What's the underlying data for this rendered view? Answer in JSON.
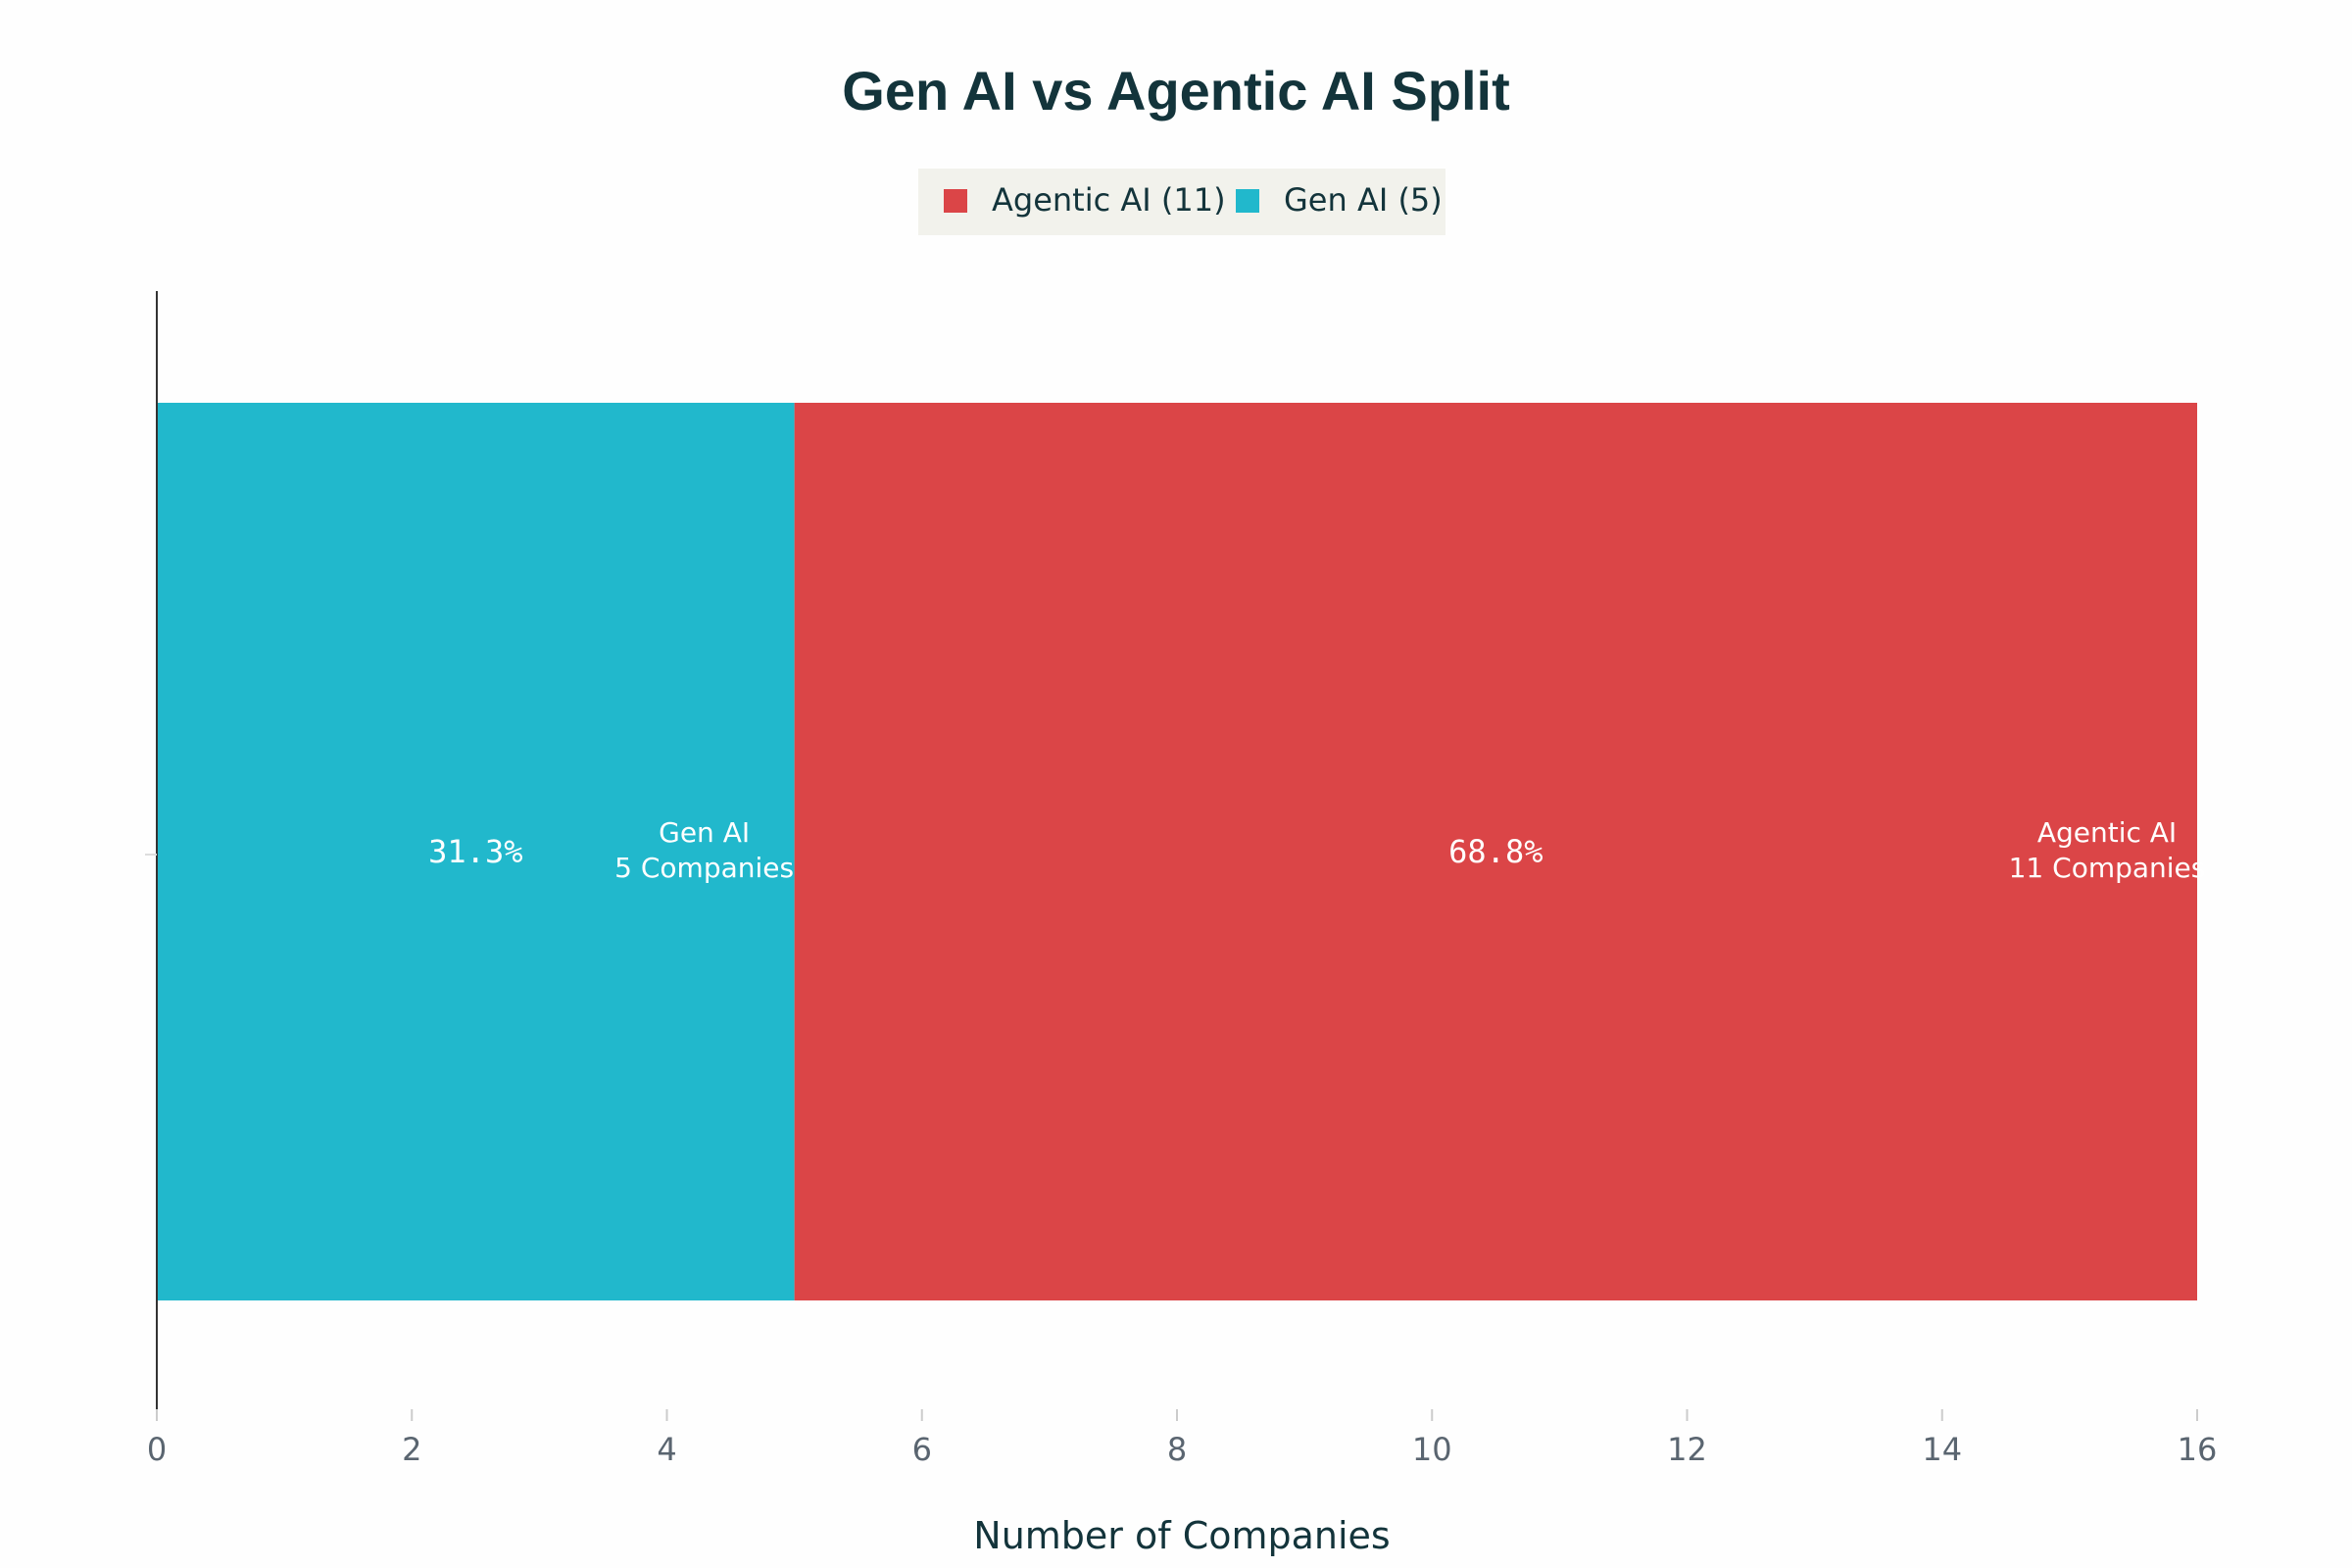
{
  "chart_data": {
    "type": "bar",
    "orientation": "horizontal",
    "stacked": true,
    "title": "Gen AI vs Agentic AI Split",
    "xlabel": "Number of Companies",
    "ylabel": "",
    "xlim": [
      0,
      16
    ],
    "x_ticks": [
      "0",
      "2",
      "4",
      "6",
      "8",
      "10",
      "12",
      "14",
      "16"
    ],
    "legend": {
      "placement": "top-center",
      "entries": [
        "Agentic AI (11)",
        "Gen AI (5)"
      ]
    },
    "series": [
      {
        "name": "Gen AI",
        "value": 5,
        "color": "#21b8cc",
        "percent_label": "31.3%",
        "label_line1": "Gen AI",
        "label_line2": "5 Companies"
      },
      {
        "name": "Agentic AI",
        "value": 11,
        "color": "#db4547",
        "percent_label": "68.8%",
        "label_line1": "Agentic AI",
        "label_line2": "11 Companies"
      }
    ]
  }
}
